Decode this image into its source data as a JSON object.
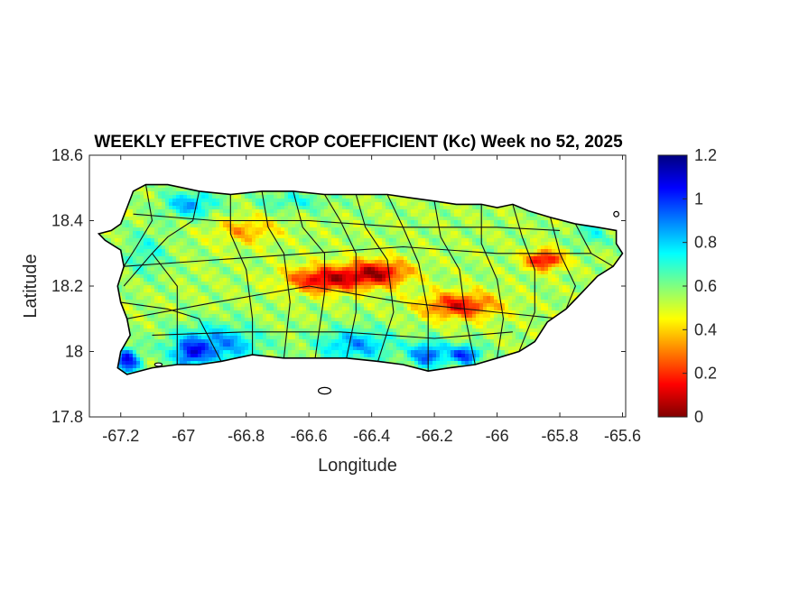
{
  "chart_data": {
    "type": "heatmap",
    "title": "WEEKLY EFFECTIVE CROP COEFFICIENT (Kc) Week no 52, 2025",
    "xlabel": "Longitude",
    "ylabel": "Latitude",
    "xlim": [
      -67.3,
      -65.59
    ],
    "ylim": [
      17.8,
      18.6
    ],
    "x_ticks": [
      -67.2,
      -67,
      -66.8,
      -66.6,
      -66.4,
      -66.2,
      -66,
      -65.8,
      -65.6
    ],
    "x_tick_labels": [
      "-67.2",
      "-67",
      "-66.8",
      "-66.6",
      "-66.4",
      "-66.2",
      "-66",
      "-65.8",
      "-65.6"
    ],
    "y_ticks": [
      17.8,
      18,
      18.2,
      18.4,
      18.6
    ],
    "y_tick_labels": [
      "17.8",
      "18",
      "18.2",
      "18.4",
      "18.6"
    ],
    "colorbar": {
      "colormap": "jet",
      "range": [
        0,
        1.2
      ],
      "ticks": [
        0,
        0.2,
        0.4,
        0.6,
        0.8,
        1,
        1.2
      ],
      "tick_labels": [
        "0",
        "0.2",
        "0.4",
        "0.6",
        "0.8",
        "1",
        "1.2"
      ]
    },
    "grid": false,
    "island_outline": [
      [
        -67.27,
        18.36
      ],
      [
        -67.23,
        18.37
      ],
      [
        -67.2,
        18.39
      ],
      [
        -67.18,
        18.44
      ],
      [
        -67.16,
        18.49
      ],
      [
        -67.12,
        18.51
      ],
      [
        -67.05,
        18.51
      ],
      [
        -66.95,
        18.49
      ],
      [
        -66.85,
        18.48
      ],
      [
        -66.75,
        18.49
      ],
      [
        -66.65,
        18.49
      ],
      [
        -66.55,
        18.48
      ],
      [
        -66.45,
        18.48
      ],
      [
        -66.35,
        18.48
      ],
      [
        -66.28,
        18.47
      ],
      [
        -66.2,
        18.46
      ],
      [
        -66.13,
        18.45
      ],
      [
        -66.05,
        18.45
      ],
      [
        -66.0,
        18.44
      ],
      [
        -65.95,
        18.45
      ],
      [
        -65.9,
        18.43
      ],
      [
        -65.83,
        18.41
      ],
      [
        -65.75,
        18.39
      ],
      [
        -65.68,
        18.38
      ],
      [
        -65.62,
        18.37
      ],
      [
        -65.62,
        18.33
      ],
      [
        -65.6,
        18.3
      ],
      [
        -65.63,
        18.26
      ],
      [
        -65.68,
        18.23
      ],
      [
        -65.73,
        18.18
      ],
      [
        -65.78,
        18.13
      ],
      [
        -65.84,
        18.09
      ],
      [
        -65.88,
        18.03
      ],
      [
        -65.93,
        18.0
      ],
      [
        -66.0,
        17.98
      ],
      [
        -66.07,
        17.96
      ],
      [
        -66.15,
        17.95
      ],
      [
        -66.22,
        17.94
      ],
      [
        -66.3,
        17.96
      ],
      [
        -66.38,
        17.97
      ],
      [
        -66.48,
        17.98
      ],
      [
        -66.58,
        17.98
      ],
      [
        -66.68,
        17.98
      ],
      [
        -66.78,
        17.99
      ],
      [
        -66.88,
        17.97
      ],
      [
        -66.95,
        17.96
      ],
      [
        -67.02,
        17.96
      ],
      [
        -67.1,
        17.95
      ],
      [
        -67.18,
        17.93
      ],
      [
        -67.21,
        17.95
      ],
      [
        -67.2,
        18.0
      ],
      [
        -67.17,
        18.05
      ],
      [
        -67.18,
        18.1
      ],
      [
        -67.2,
        18.15
      ],
      [
        -67.21,
        18.2
      ],
      [
        -67.19,
        18.26
      ],
      [
        -67.2,
        18.31
      ],
      [
        -67.25,
        18.34
      ]
    ],
    "municipal_boundaries": [
      [
        [
          -67.12,
          18.51
        ],
        [
          -67.1,
          18.4
        ],
        [
          -67.15,
          18.32
        ],
        [
          -67.19,
          18.26
        ]
      ],
      [
        [
          -66.95,
          18.49
        ],
        [
          -66.97,
          18.4
        ],
        [
          -67.05,
          18.35
        ],
        [
          -67.1,
          18.3
        ],
        [
          -67.19,
          18.2
        ]
      ],
      [
        [
          -67.2,
          18.15
        ],
        [
          -67.05,
          18.13
        ],
        [
          -66.95,
          18.1
        ],
        [
          -66.88,
          17.97
        ]
      ],
      [
        [
          -67.1,
          18.3
        ],
        [
          -67.02,
          18.2
        ],
        [
          -67.02,
          18.1
        ],
        [
          -67.02,
          17.96
        ]
      ],
      [
        [
          -66.85,
          18.48
        ],
        [
          -66.85,
          18.36
        ],
        [
          -66.8,
          18.25
        ],
        [
          -66.78,
          18.1
        ],
        [
          -66.78,
          17.99
        ]
      ],
      [
        [
          -66.75,
          18.49
        ],
        [
          -66.73,
          18.38
        ],
        [
          -66.68,
          18.3
        ],
        [
          -66.66,
          18.15
        ],
        [
          -66.68,
          17.98
        ]
      ],
      [
        [
          -66.65,
          18.49
        ],
        [
          -66.62,
          18.38
        ],
        [
          -66.55,
          18.3
        ],
        [
          -66.55,
          18.18
        ],
        [
          -66.58,
          17.98
        ]
      ],
      [
        [
          -66.55,
          18.48
        ],
        [
          -66.5,
          18.4
        ],
        [
          -66.45,
          18.3
        ],
        [
          -66.45,
          18.12
        ],
        [
          -66.48,
          17.98
        ]
      ],
      [
        [
          -66.45,
          18.48
        ],
        [
          -66.42,
          18.38
        ],
        [
          -66.35,
          18.28
        ],
        [
          -66.33,
          18.12
        ],
        [
          -66.38,
          17.97
        ]
      ],
      [
        [
          -66.35,
          18.48
        ],
        [
          -66.3,
          18.38
        ],
        [
          -66.25,
          18.27
        ],
        [
          -66.22,
          18.12
        ],
        [
          -66.22,
          17.94
        ]
      ],
      [
        [
          -66.2,
          18.46
        ],
        [
          -66.18,
          18.35
        ],
        [
          -66.12,
          18.25
        ],
        [
          -66.1,
          18.1
        ],
        [
          -66.07,
          17.96
        ]
      ],
      [
        [
          -66.05,
          18.45
        ],
        [
          -66.05,
          18.33
        ],
        [
          -66.0,
          18.22
        ],
        [
          -65.98,
          18.1
        ],
        [
          -66.0,
          17.98
        ]
      ],
      [
        [
          -65.95,
          18.45
        ],
        [
          -65.92,
          18.35
        ],
        [
          -65.88,
          18.25
        ],
        [
          -65.88,
          18.12
        ],
        [
          -65.93,
          18.0
        ]
      ],
      [
        [
          -65.83,
          18.41
        ],
        [
          -65.8,
          18.3
        ],
        [
          -65.75,
          18.2
        ],
        [
          -65.78,
          18.13
        ]
      ],
      [
        [
          -65.75,
          18.39
        ],
        [
          -65.7,
          18.3
        ],
        [
          -65.63,
          18.26
        ]
      ],
      [
        [
          -67.19,
          18.26
        ],
        [
          -66.9,
          18.28
        ],
        [
          -66.6,
          18.3
        ],
        [
          -66.3,
          18.32
        ],
        [
          -66.0,
          18.3
        ],
        [
          -65.7,
          18.3
        ]
      ],
      [
        [
          -67.18,
          18.1
        ],
        [
          -66.9,
          18.15
        ],
        [
          -66.6,
          18.2
        ],
        [
          -66.3,
          18.15
        ],
        [
          -66.0,
          18.12
        ],
        [
          -65.8,
          18.1
        ]
      ],
      [
        [
          -67.16,
          18.42
        ],
        [
          -66.9,
          18.4
        ],
        [
          -66.6,
          18.4
        ],
        [
          -66.3,
          18.38
        ],
        [
          -66.0,
          18.38
        ],
        [
          -65.8,
          18.37
        ]
      ],
      [
        [
          -67.1,
          18.05
        ],
        [
          -66.8,
          18.06
        ],
        [
          -66.5,
          18.06
        ],
        [
          -66.2,
          18.04
        ],
        [
          -65.95,
          18.06
        ]
      ]
    ],
    "islets": [
      {
        "lon": -66.55,
        "lat": 17.88,
        "rx": 0.02,
        "ry": 0.01
      },
      {
        "lon": -65.62,
        "lat": 18.42,
        "rx": 0.008,
        "ry": 0.008
      },
      {
        "lon": -67.08,
        "lat": 17.96,
        "rx": 0.012,
        "ry": 0.005
      }
    ],
    "value_field": {
      "base": 0.65,
      "features": [
        {
          "lon": -66.55,
          "lat": 18.22,
          "sx": 0.12,
          "sy": 0.04,
          "amp": 0.45
        },
        {
          "lon": -66.38,
          "lat": 18.24,
          "sx": 0.1,
          "sy": 0.04,
          "amp": 0.45
        },
        {
          "lon": -66.12,
          "lat": 18.14,
          "sx": 0.12,
          "sy": 0.04,
          "amp": 0.4
        },
        {
          "lon": -65.85,
          "lat": 18.28,
          "sx": 0.06,
          "sy": 0.03,
          "amp": 0.45
        },
        {
          "lon": -66.8,
          "lat": 18.37,
          "sx": 0.1,
          "sy": 0.04,
          "amp": 0.2
        },
        {
          "lon": -66.98,
          "lat": 18.45,
          "sx": 0.08,
          "sy": 0.04,
          "amp": -0.3
        },
        {
          "lon": -66.65,
          "lat": 18.46,
          "sx": 0.12,
          "sy": 0.03,
          "amp": -0.15
        },
        {
          "lon": -67.12,
          "lat": 18.3,
          "sx": 0.07,
          "sy": 0.07,
          "amp": -0.15
        },
        {
          "lon": -66.9,
          "lat": 18.02,
          "sx": 0.14,
          "sy": 0.06,
          "amp": -0.35
        },
        {
          "lon": -66.45,
          "lat": 18.02,
          "sx": 0.12,
          "sy": 0.05,
          "amp": -0.3
        },
        {
          "lon": -66.22,
          "lat": 17.99,
          "sx": 0.06,
          "sy": 0.04,
          "amp": -0.4
        },
        {
          "lon": -66.1,
          "lat": 17.99,
          "sx": 0.05,
          "sy": 0.03,
          "amp": -0.45
        },
        {
          "lon": -67.18,
          "lat": 17.97,
          "sx": 0.04,
          "sy": 0.04,
          "amp": -0.5
        },
        {
          "lon": -66.98,
          "lat": 17.99,
          "sx": 0.05,
          "sy": 0.04,
          "amp": -0.3
        },
        {
          "lon": -65.7,
          "lat": 18.36,
          "sx": 0.06,
          "sy": 0.04,
          "amp": -0.15
        }
      ]
    }
  }
}
